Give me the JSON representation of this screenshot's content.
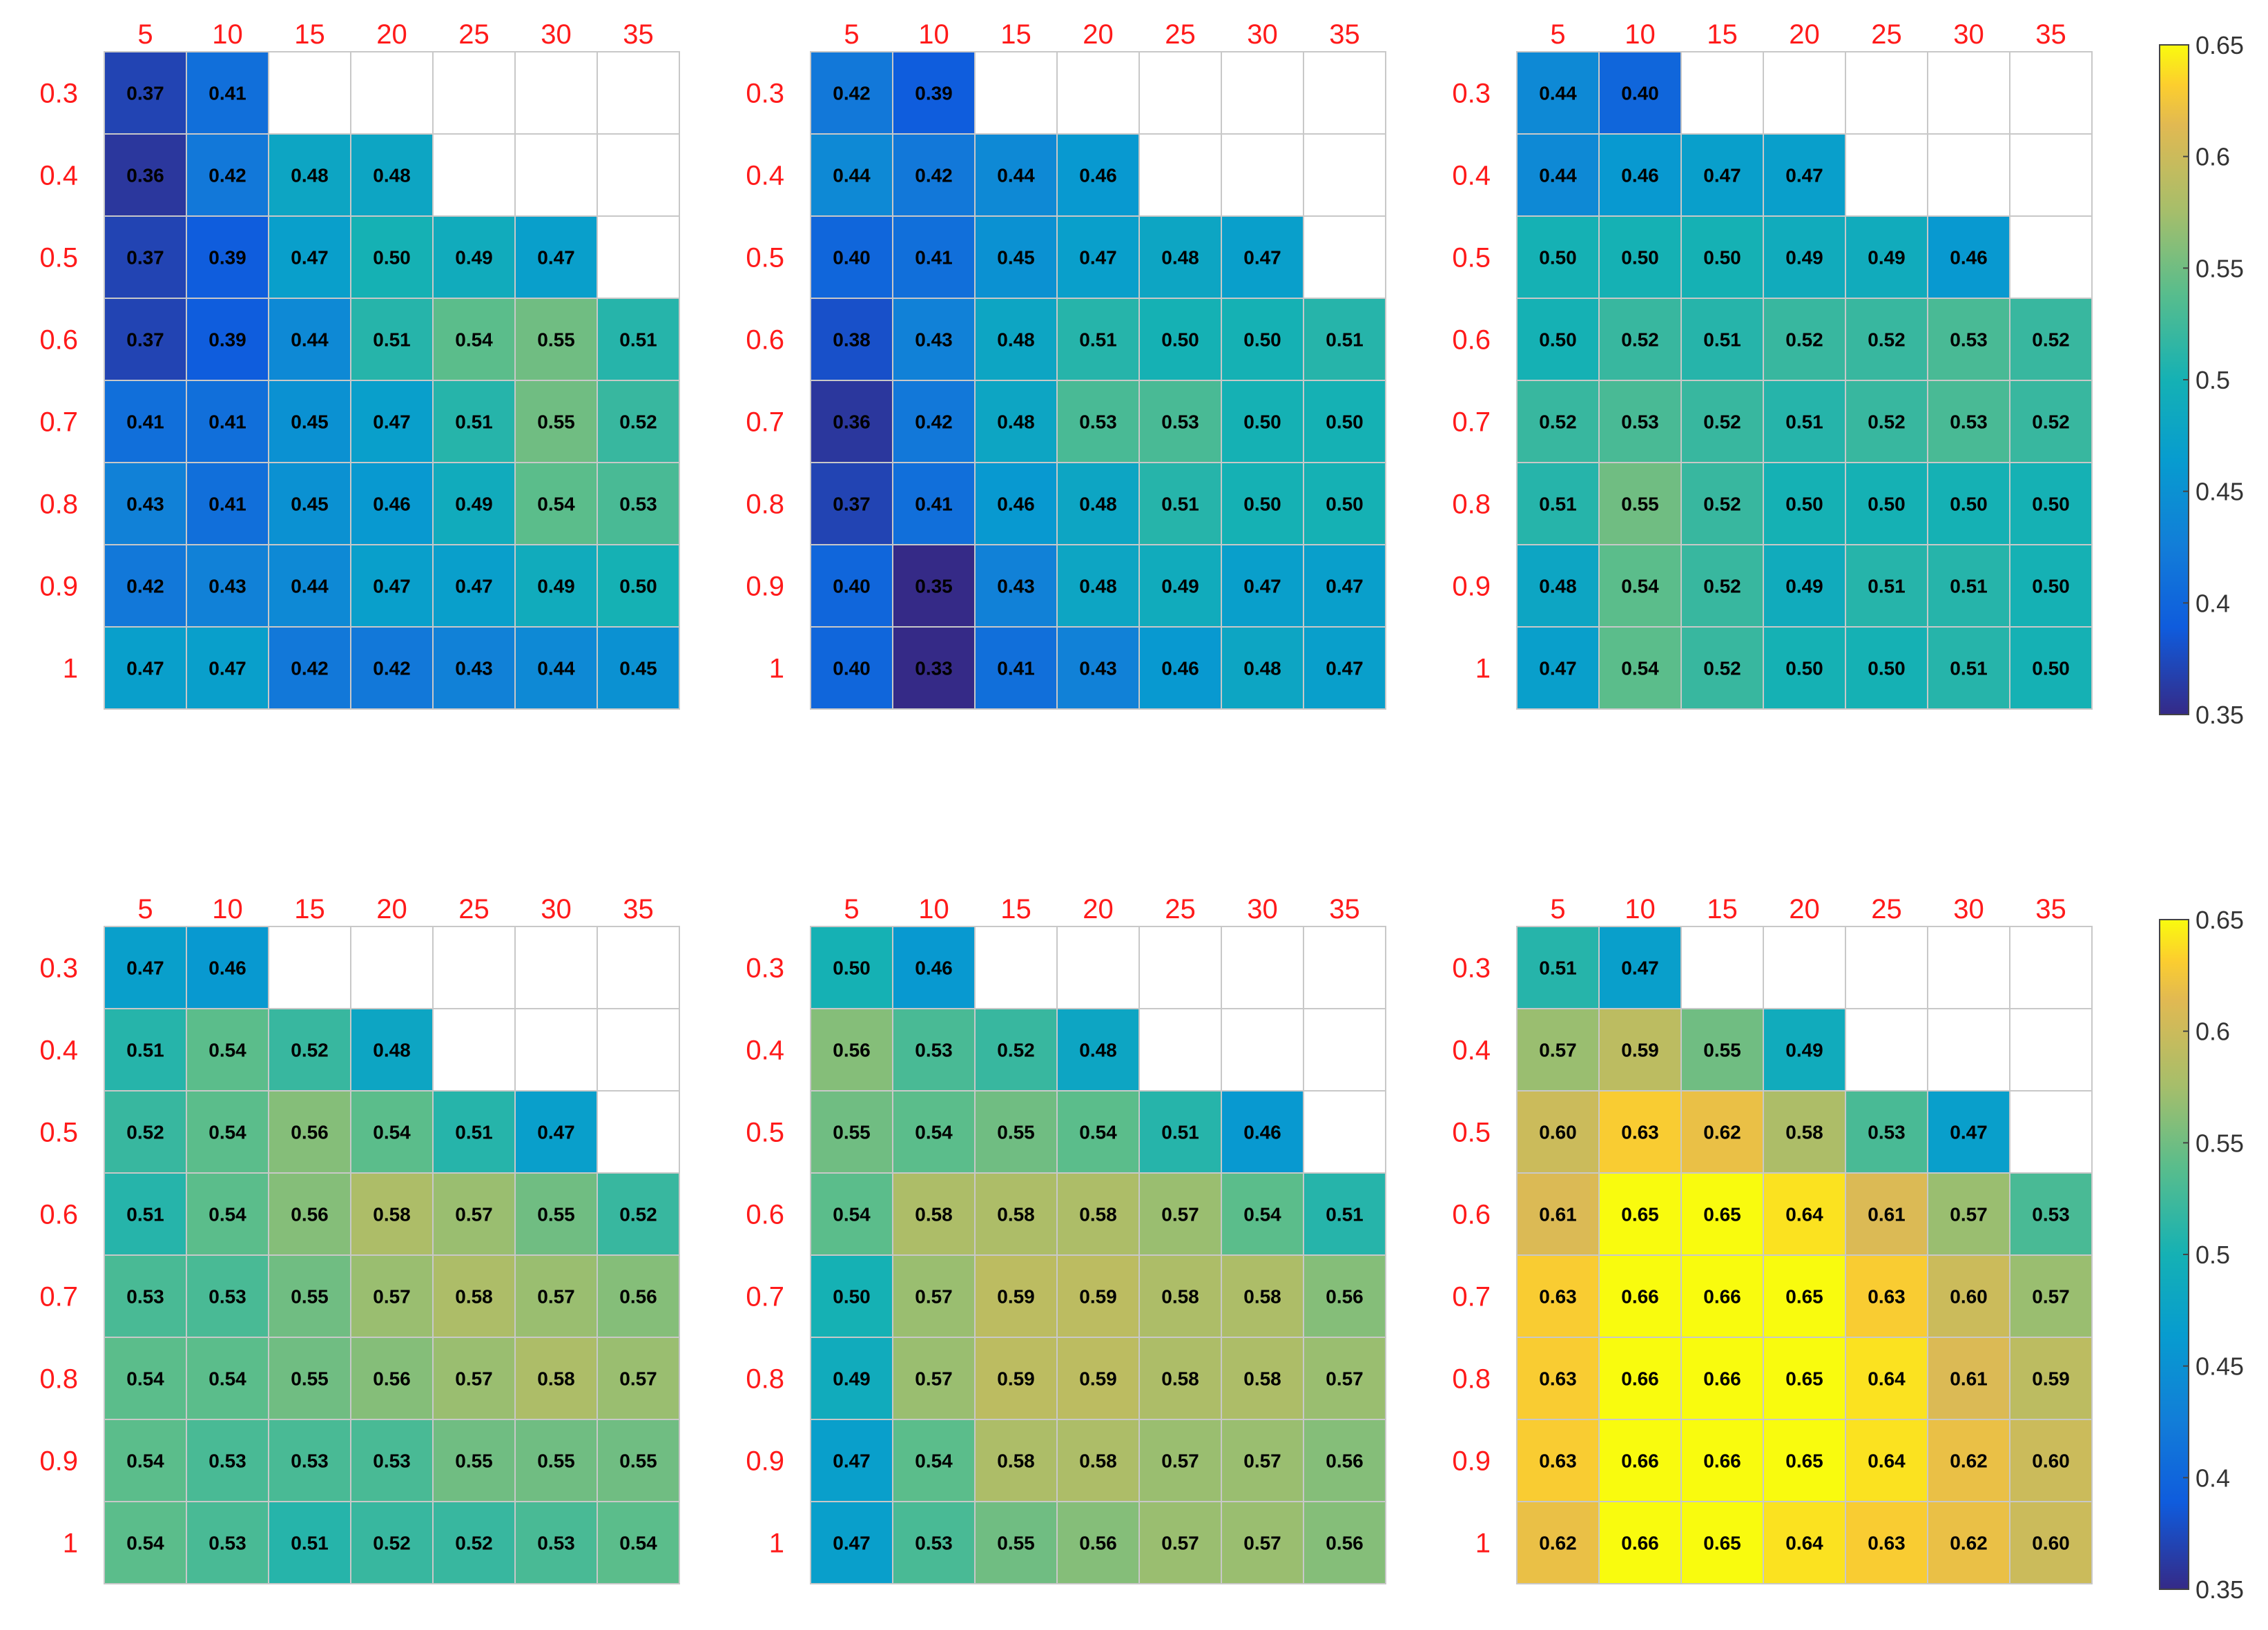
{
  "chart_data": [
    {
      "type": "heatmap",
      "x_ticks": [
        "5",
        "10",
        "15",
        "20",
        "25",
        "30",
        "35"
      ],
      "y_ticks": [
        "0.3",
        "0.4",
        "0.5",
        "0.6",
        "0.7",
        "0.8",
        "0.9",
        "1"
      ],
      "x_values": [
        5,
        10,
        15,
        20,
        25,
        30,
        35
      ],
      "y_values": [
        0.3,
        0.4,
        0.5,
        0.6,
        0.7,
        0.8,
        0.9,
        1
      ],
      "values": [
        [
          0.37,
          0.41,
          null,
          null,
          null,
          null,
          null
        ],
        [
          0.36,
          0.42,
          0.48,
          0.48,
          null,
          null,
          null
        ],
        [
          0.37,
          0.39,
          0.47,
          0.5,
          0.49,
          0.47,
          null
        ],
        [
          0.37,
          0.39,
          0.44,
          0.51,
          0.54,
          0.55,
          0.51
        ],
        [
          0.41,
          0.41,
          0.45,
          0.47,
          0.51,
          0.55,
          0.52
        ],
        [
          0.43,
          0.41,
          0.45,
          0.46,
          0.49,
          0.54,
          0.53
        ],
        [
          0.42,
          0.43,
          0.44,
          0.47,
          0.47,
          0.49,
          0.5
        ],
        [
          0.47,
          0.47,
          0.42,
          0.42,
          0.43,
          0.44,
          0.45
        ]
      ]
    },
    {
      "type": "heatmap",
      "x_ticks": [
        "5",
        "10",
        "15",
        "20",
        "25",
        "30",
        "35"
      ],
      "y_ticks": [
        "0.3",
        "0.4",
        "0.5",
        "0.6",
        "0.7",
        "0.8",
        "0.9",
        "1"
      ],
      "x_values": [
        5,
        10,
        15,
        20,
        25,
        30,
        35
      ],
      "y_values": [
        0.3,
        0.4,
        0.5,
        0.6,
        0.7,
        0.8,
        0.9,
        1
      ],
      "values": [
        [
          0.42,
          0.39,
          null,
          null,
          null,
          null,
          null
        ],
        [
          0.44,
          0.42,
          0.44,
          0.46,
          null,
          null,
          null
        ],
        [
          0.4,
          0.41,
          0.45,
          0.47,
          0.48,
          0.47,
          null
        ],
        [
          0.38,
          0.43,
          0.48,
          0.51,
          0.5,
          0.5,
          0.51
        ],
        [
          0.36,
          0.42,
          0.48,
          0.53,
          0.53,
          0.5,
          0.5
        ],
        [
          0.37,
          0.41,
          0.46,
          0.48,
          0.51,
          0.5,
          0.5
        ],
        [
          0.4,
          0.35,
          0.43,
          0.48,
          0.49,
          0.47,
          0.47
        ],
        [
          0.4,
          0.33,
          0.41,
          0.43,
          0.46,
          0.48,
          0.47
        ]
      ]
    },
    {
      "type": "heatmap",
      "x_ticks": [
        "5",
        "10",
        "15",
        "20",
        "25",
        "30",
        "35"
      ],
      "y_ticks": [
        "0.3",
        "0.4",
        "0.5",
        "0.6",
        "0.7",
        "0.8",
        "0.9",
        "1"
      ],
      "x_values": [
        5,
        10,
        15,
        20,
        25,
        30,
        35
      ],
      "y_values": [
        0.3,
        0.4,
        0.5,
        0.6,
        0.7,
        0.8,
        0.9,
        1
      ],
      "values": [
        [
          0.44,
          0.4,
          null,
          null,
          null,
          null,
          null
        ],
        [
          0.44,
          0.46,
          0.47,
          0.47,
          null,
          null,
          null
        ],
        [
          0.5,
          0.5,
          0.5,
          0.49,
          0.49,
          0.46,
          null
        ],
        [
          0.5,
          0.52,
          0.51,
          0.52,
          0.52,
          0.53,
          0.52
        ],
        [
          0.52,
          0.53,
          0.52,
          0.51,
          0.52,
          0.53,
          0.52
        ],
        [
          0.51,
          0.55,
          0.52,
          0.5,
          0.5,
          0.5,
          0.5
        ],
        [
          0.48,
          0.54,
          0.52,
          0.49,
          0.51,
          0.51,
          0.5
        ],
        [
          0.47,
          0.54,
          0.52,
          0.5,
          0.5,
          0.51,
          0.5
        ]
      ]
    },
    {
      "type": "heatmap",
      "x_ticks": [
        "5",
        "10",
        "15",
        "20",
        "25",
        "30",
        "35"
      ],
      "y_ticks": [
        "0.3",
        "0.4",
        "0.5",
        "0.6",
        "0.7",
        "0.8",
        "0.9",
        "1"
      ],
      "x_values": [
        5,
        10,
        15,
        20,
        25,
        30,
        35
      ],
      "y_values": [
        0.3,
        0.4,
        0.5,
        0.6,
        0.7,
        0.8,
        0.9,
        1
      ],
      "values": [
        [
          0.47,
          0.46,
          null,
          null,
          null,
          null,
          null
        ],
        [
          0.51,
          0.54,
          0.52,
          0.48,
          null,
          null,
          null
        ],
        [
          0.52,
          0.54,
          0.56,
          0.54,
          0.51,
          0.47,
          null
        ],
        [
          0.51,
          0.54,
          0.56,
          0.58,
          0.57,
          0.55,
          0.52
        ],
        [
          0.53,
          0.53,
          0.55,
          0.57,
          0.58,
          0.57,
          0.56
        ],
        [
          0.54,
          0.54,
          0.55,
          0.56,
          0.57,
          0.58,
          0.57
        ],
        [
          0.54,
          0.53,
          0.53,
          0.53,
          0.55,
          0.55,
          0.55
        ],
        [
          0.54,
          0.53,
          0.51,
          0.52,
          0.52,
          0.53,
          0.54
        ]
      ]
    },
    {
      "type": "heatmap",
      "x_ticks": [
        "5",
        "10",
        "15",
        "20",
        "25",
        "30",
        "35"
      ],
      "y_ticks": [
        "0.3",
        "0.4",
        "0.5",
        "0.6",
        "0.7",
        "0.8",
        "0.9",
        "1"
      ],
      "x_values": [
        5,
        10,
        15,
        20,
        25,
        30,
        35
      ],
      "y_values": [
        0.3,
        0.4,
        0.5,
        0.6,
        0.7,
        0.8,
        0.9,
        1
      ],
      "values": [
        [
          0.5,
          0.46,
          null,
          null,
          null,
          null,
          null
        ],
        [
          0.56,
          0.53,
          0.52,
          0.48,
          null,
          null,
          null
        ],
        [
          0.55,
          0.54,
          0.55,
          0.54,
          0.51,
          0.46,
          null
        ],
        [
          0.54,
          0.58,
          0.58,
          0.58,
          0.57,
          0.54,
          0.51
        ],
        [
          0.5,
          0.57,
          0.59,
          0.59,
          0.58,
          0.58,
          0.56
        ],
        [
          0.49,
          0.57,
          0.59,
          0.59,
          0.58,
          0.58,
          0.57
        ],
        [
          0.47,
          0.54,
          0.58,
          0.58,
          0.57,
          0.57,
          0.56
        ],
        [
          0.47,
          0.53,
          0.55,
          0.56,
          0.57,
          0.57,
          0.56
        ]
      ]
    },
    {
      "type": "heatmap",
      "x_ticks": [
        "5",
        "10",
        "15",
        "20",
        "25",
        "30",
        "35"
      ],
      "y_ticks": [
        "0.3",
        "0.4",
        "0.5",
        "0.6",
        "0.7",
        "0.8",
        "0.9",
        "1"
      ],
      "x_values": [
        5,
        10,
        15,
        20,
        25,
        30,
        35
      ],
      "y_values": [
        0.3,
        0.4,
        0.5,
        0.6,
        0.7,
        0.8,
        0.9,
        1
      ],
      "values": [
        [
          0.51,
          0.47,
          null,
          null,
          null,
          null,
          null
        ],
        [
          0.57,
          0.59,
          0.55,
          0.49,
          null,
          null,
          null
        ],
        [
          0.6,
          0.63,
          0.62,
          0.58,
          0.53,
          0.47,
          null
        ],
        [
          0.61,
          0.65,
          0.65,
          0.64,
          0.61,
          0.57,
          0.53
        ],
        [
          0.63,
          0.66,
          0.66,
          0.65,
          0.63,
          0.6,
          0.57
        ],
        [
          0.63,
          0.66,
          0.66,
          0.65,
          0.64,
          0.61,
          0.59
        ],
        [
          0.63,
          0.66,
          0.66,
          0.65,
          0.64,
          0.62,
          0.6
        ],
        [
          0.62,
          0.66,
          0.65,
          0.64,
          0.63,
          0.62,
          0.6
        ]
      ]
    }
  ],
  "colorbars": [
    {
      "ticks": [
        "0.65",
        "0.6",
        "0.55",
        "0.5",
        "0.45",
        "0.4",
        "0.35"
      ],
      "tick_values": [
        0.65,
        0.6,
        0.55,
        0.5,
        0.45,
        0.4,
        0.35
      ],
      "clim": [
        0.35,
        0.65
      ]
    },
    {
      "ticks": [
        "0.65",
        "0.6",
        "0.55",
        "0.5",
        "0.45",
        "0.4",
        "0.35"
      ],
      "tick_values": [
        0.65,
        0.6,
        0.55,
        0.5,
        0.45,
        0.4,
        0.35
      ],
      "clim": [
        0.35,
        0.65
      ]
    }
  ],
  "style": {
    "tick_label_color": "#ff1a1a",
    "colorbar_tick_color": "#333333",
    "cell_text_color": "#000000",
    "grid_line_color": "#c8c8c8",
    "colormap": "parula"
  }
}
